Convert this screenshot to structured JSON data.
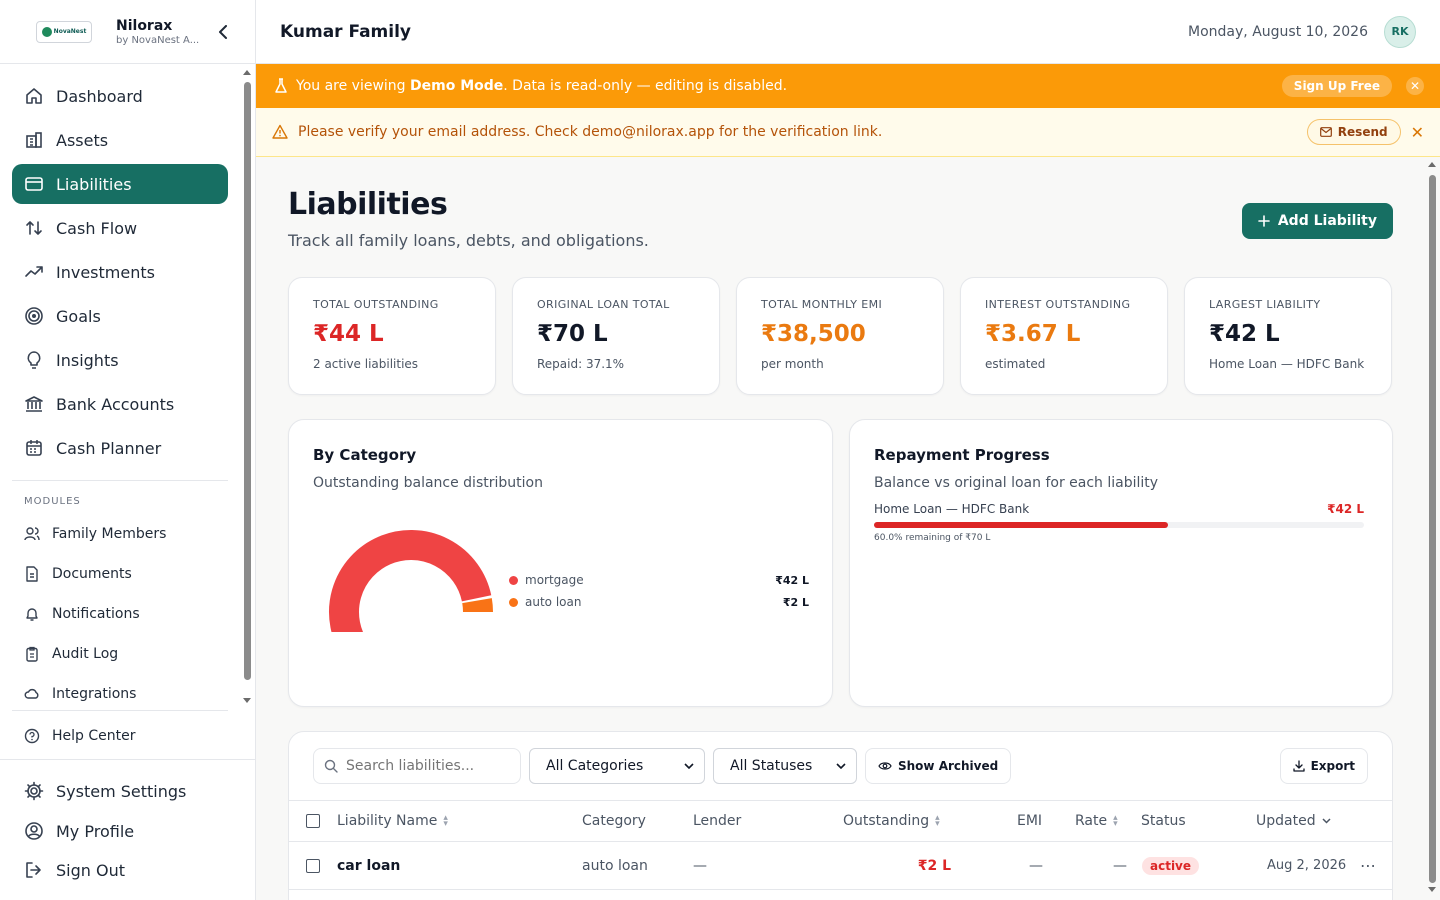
{
  "brand": {
    "name": "Nilorax",
    "subtitle": "by NovaNest A...",
    "logo_text": "NovaNest"
  },
  "sidebar": {
    "main_items": [
      {
        "label": "Dashboard",
        "icon": "home-icon"
      },
      {
        "label": "Assets",
        "icon": "building-icon"
      },
      {
        "label": "Liabilities",
        "icon": "credit-card-icon",
        "active": true
      },
      {
        "label": "Cash Flow",
        "icon": "arrows-up-down-icon"
      },
      {
        "label": "Investments",
        "icon": "trending-up-icon"
      },
      {
        "label": "Goals",
        "icon": "target-icon"
      },
      {
        "label": "Insights",
        "icon": "lightbulb-icon"
      },
      {
        "label": "Bank Accounts",
        "icon": "bank-icon"
      },
      {
        "label": "Cash Planner",
        "icon": "calendar-icon"
      }
    ],
    "modules_label": "MODULES",
    "module_items": [
      {
        "label": "Family Members",
        "icon": "users-icon"
      },
      {
        "label": "Documents",
        "icon": "document-icon"
      },
      {
        "label": "Notifications",
        "icon": "bell-icon"
      },
      {
        "label": "Audit Log",
        "icon": "clipboard-icon"
      },
      {
        "label": "Integrations",
        "icon": "cloud-icon"
      }
    ],
    "help_label": "Help Center",
    "bottom_items": [
      {
        "label": "System Settings",
        "icon": "gear-icon"
      },
      {
        "label": "My Profile",
        "icon": "user-circle-icon"
      },
      {
        "label": "Sign Out",
        "icon": "sign-out-icon"
      }
    ]
  },
  "header": {
    "family_name": "Kumar Family",
    "date": "Monday, August 10, 2026",
    "avatar_initials": "RK"
  },
  "demo_banner": {
    "prefix": "You are viewing ",
    "bold": "Demo Mode",
    "suffix": ". Data is read-only — editing is disabled.",
    "button": "Sign Up Free"
  },
  "verify_banner": {
    "message": "Please verify your email address. Check demo@nilorax.app for the verification link.",
    "button": "Resend"
  },
  "page": {
    "title": "Liabilities",
    "subtitle": "Track all family loans, debts, and obligations.",
    "add_button": "Add Liability"
  },
  "stats": [
    {
      "label": "TOTAL OUTSTANDING",
      "value": "₹44 L",
      "note": "2 active liabilities",
      "tone": "red"
    },
    {
      "label": "ORIGINAL LOAN TOTAL",
      "value": "₹70 L",
      "note": "Repaid: 37.1%",
      "tone": "dark"
    },
    {
      "label": "TOTAL MONTHLY EMI",
      "value": "₹38,500",
      "note": "per month",
      "tone": "orange"
    },
    {
      "label": "INTEREST OUTSTANDING",
      "value": "₹3.67 L",
      "note": "estimated",
      "tone": "orange"
    },
    {
      "label": "LARGEST LIABILITY",
      "value": "₹42 L",
      "note": "Home Loan — HDFC Bank",
      "tone": "dark"
    }
  ],
  "category_panel": {
    "title": "By Category",
    "subtitle": "Outstanding balance distribution"
  },
  "chart_data": {
    "type": "pie",
    "labels": [
      "mortgage",
      "auto loan"
    ],
    "values": [
      42,
      2
    ],
    "value_labels": [
      "₹42 L",
      "₹2 L"
    ],
    "colors": [
      "#ef4444",
      "#f97316"
    ],
    "legend_position": "right"
  },
  "repayment_panel": {
    "title": "Repayment Progress",
    "subtitle": "Balance vs original loan for each liability",
    "items": [
      {
        "name": "Home Loan — HDFC Bank",
        "value": "₹42 L",
        "remaining_fraction": 0.6,
        "note": "60.0% remaining of ₹70 L"
      }
    ]
  },
  "table": {
    "search_placeholder": "Search liabilities...",
    "category_filter": "All Categories",
    "status_filter": "All Statuses",
    "archived_button": "Show Archived",
    "export_button": "Export",
    "columns": [
      "Liability Name",
      "Category",
      "Lender",
      "Outstanding",
      "EMI",
      "Rate",
      "Status",
      "Updated"
    ],
    "rows": [
      {
        "name": "car loan",
        "category": "auto loan",
        "lender": "—",
        "outstanding": "₹2 L",
        "emi": "—",
        "rate": "—",
        "status": "active",
        "updated": "Aug 2, 2026"
      }
    ]
  }
}
